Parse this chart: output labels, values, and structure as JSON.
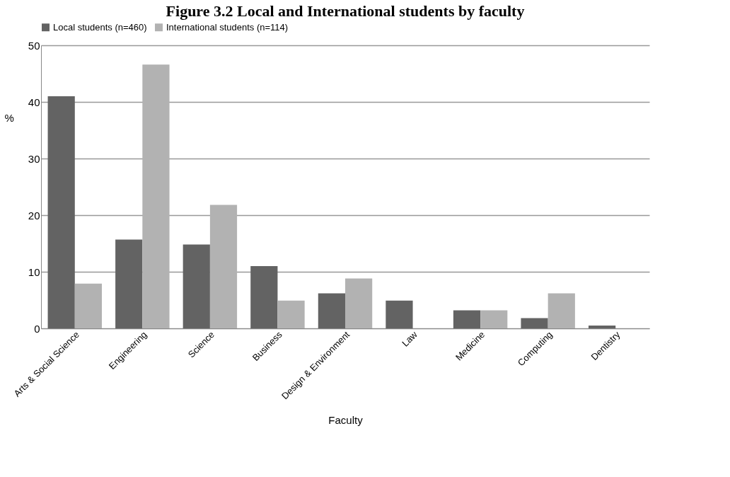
{
  "chart_data": {
    "type": "bar",
    "title": "Figure 3.2 Local and International students by faculty",
    "xlabel": "Faculty",
    "ylabel": "%",
    "categories": [
      "Arts & Social Science",
      "Engineering",
      "Science",
      "Business",
      "Design & Environment",
      "Law",
      "Medicine",
      "Computing",
      "Dentistry"
    ],
    "series": [
      {
        "name": "Local students (n=460)",
        "color": "#636363",
        "values": [
          41,
          15.7,
          14.8,
          11,
          6.2,
          4.9,
          3.2,
          1.8,
          0.5
        ]
      },
      {
        "name": "International students (n=114)",
        "color": "#b2b2b2",
        "values": [
          7.9,
          46.6,
          21.8,
          4.9,
          8.8,
          0,
          3.2,
          6.2,
          0
        ]
      }
    ],
    "ylim": [
      0,
      50
    ],
    "yticks": [
      0,
      10,
      20,
      30,
      40,
      50
    ],
    "grid": "y",
    "legend": "top"
  }
}
